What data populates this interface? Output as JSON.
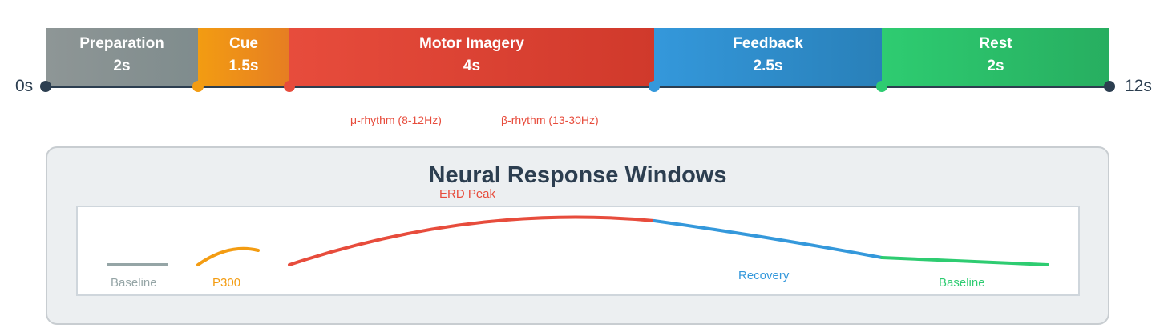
{
  "timeline": {
    "start_label": "0s",
    "end_label": "12s",
    "phases": [
      {
        "name": "Preparation",
        "duration": "2s",
        "color": "#8e9696"
      },
      {
        "name": "Cue",
        "duration": "1.5s",
        "color": "#f39c12"
      },
      {
        "name": "Motor Imagery",
        "duration": "4s",
        "color": "#e74c3c"
      },
      {
        "name": "Feedback",
        "duration": "2.5s",
        "color": "#3498db"
      },
      {
        "name": "Rest",
        "duration": "2s",
        "color": "#2ecc71"
      }
    ],
    "axis_color": "#2c3e50",
    "rhythms": {
      "mu": "μ-rhythm (8-12Hz)",
      "beta": "β-rhythm (13-30Hz)"
    }
  },
  "neural_panel": {
    "title": "Neural Response Windows",
    "labels": {
      "baseline_start": "Baseline",
      "p300": "P300",
      "erd_peak": "ERD Peak",
      "recovery": "Recovery",
      "baseline_end": "Baseline"
    },
    "colors": {
      "baseline_start": "#95a5a6",
      "p300": "#f39c12",
      "erd": "#e74c3c",
      "recovery": "#3498db",
      "baseline_end": "#2ecc71"
    }
  }
}
